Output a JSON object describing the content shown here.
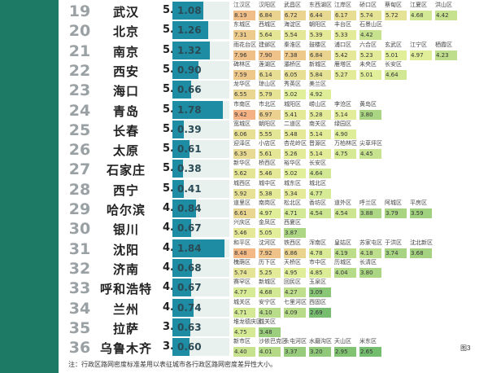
{
  "note": "注：行政区路网密度标准差用以表征城市各行政区路网密度差异性大小。",
  "figure_label": "图3",
  "colors": {
    "band": "#1c7a65",
    "bar": "#1e8da3",
    "low": "#f4b183",
    "mid": "#e2ef9a",
    "high": "#6db96b"
  },
  "chart_data": {
    "type": "table",
    "rows": [
      {
        "rank": "19",
        "city": "武汉",
        "score": "5.77",
        "std": 1.08,
        "std_label": "1.08",
        "districts": [
          [
            "江汉区",
            "8.19"
          ],
          [
            "汉阳区",
            "6.84"
          ],
          [
            "武昌区",
            "6.72"
          ],
          [
            "东西湖区",
            "6.44"
          ],
          [
            "江岸区",
            "6.17"
          ],
          [
            "硚口区",
            "5.74"
          ],
          [
            "蔡甸区",
            "5.72"
          ],
          [
            "江夏区",
            "4.68"
          ],
          [
            "洪山区",
            "4.42"
          ]
        ]
      },
      {
        "rank": "20",
        "city": "北京",
        "score": "5.59",
        "std": 1.26,
        "std_label": "1.26",
        "districts": [
          [
            "东城区",
            "7.31"
          ],
          [
            "西城区",
            "5.64"
          ],
          [
            "海淀区",
            "5.54"
          ],
          [
            "朝阳区",
            "5.39"
          ],
          [
            "丰台区",
            "5.33"
          ],
          [
            "石景山区",
            "4.42"
          ]
        ]
      },
      {
        "rank": "21",
        "city": "南京",
        "score": "5.55",
        "std": 1.32,
        "std_label": "1.32",
        "districts": [
          [
            "雨花台区",
            "7.96"
          ],
          [
            "建邺区",
            "7.90"
          ],
          [
            "秦淮区",
            "7.38"
          ],
          [
            "鼓楼区",
            "6.84"
          ],
          [
            "浦口区",
            "5.42"
          ],
          [
            "六合区",
            "5.23"
          ],
          [
            "玄武区",
            "5.01"
          ],
          [
            "江宁区",
            "4.97"
          ],
          [
            "栖霞区",
            "4.23"
          ]
        ]
      },
      {
        "rank": "22",
        "city": "西安",
        "score": "5.49",
        "std": 0.9,
        "std_label": "0.90",
        "districts": [
          [
            "碑林区",
            "7.59"
          ],
          [
            "莲湖区",
            "6.14"
          ],
          [
            "灞桥区",
            "6.05"
          ],
          [
            "新城区",
            "5.84"
          ],
          [
            "雁塔区",
            "5.27"
          ],
          [
            "未央区",
            "5.01"
          ],
          [
            "长安区",
            "4.64"
          ]
        ]
      },
      {
        "rank": "23",
        "city": "海口",
        "score": "5.46",
        "std": 0.66,
        "std_label": "0.66",
        "districts": [
          [
            "龙华区",
            "6.55"
          ],
          [
            "琼山区",
            "5.79"
          ],
          [
            "秀英区",
            "5.02"
          ],
          [
            "美兰区",
            "4.92"
          ]
        ]
      },
      {
        "rank": "24",
        "city": "青岛",
        "score": "5.35",
        "std": 1.78,
        "std_label": "1.78",
        "districts": [
          [
            "市南区",
            "9.42"
          ],
          [
            "市北区",
            "6.97"
          ],
          [
            "城阳区",
            "5.41"
          ],
          [
            "崂山区",
            "5.28"
          ],
          [
            "李沧区",
            "5.14"
          ],
          [
            "黄岛区",
            "3.80"
          ]
        ]
      },
      {
        "rank": "25",
        "city": "长春",
        "score": "5.33",
        "std": 0.39,
        "std_label": "0.39",
        "districts": [
          [
            "宽城区",
            "6.06"
          ],
          [
            "朝阳区",
            "5.55"
          ],
          [
            "二道区",
            "5.48"
          ],
          [
            "南关区",
            "5.14"
          ],
          [
            "绿园区",
            "4.90"
          ]
        ]
      },
      {
        "rank": "26",
        "city": "太原",
        "score": "5.17",
        "std": 0.61,
        "std_label": "0.61",
        "districts": [
          [
            "迎泽区",
            "6.35"
          ],
          [
            "小店区",
            "5.61"
          ],
          [
            "杏花岭区",
            "5.26"
          ],
          [
            "晋源区",
            "5.14"
          ],
          [
            "万柏林区",
            "4.75"
          ],
          [
            "尖草坪区",
            "4.45"
          ]
        ]
      },
      {
        "rank": "27",
        "city": "石家庄",
        "score": "5.15",
        "std": 0.38,
        "std_label": "0.38",
        "districts": [
          [
            "新华区",
            "5.62"
          ],
          [
            "桥西区",
            "5.46"
          ],
          [
            "裕华区",
            "5.02"
          ],
          [
            "长安区",
            "4.64"
          ]
        ]
      },
      {
        "rank": "28",
        "city": "西宁",
        "score": "5.04",
        "std": 0.41,
        "std_label": "0.41",
        "districts": [
          [
            "城西区",
            "5.92"
          ],
          [
            "城中区",
            "5.38"
          ],
          [
            "城东区",
            "5.34"
          ],
          [
            "城北区",
            "4.77"
          ]
        ]
      },
      {
        "rank": "29",
        "city": "哈尔滨",
        "score": "4.94",
        "std": 0.84,
        "std_label": "0.84",
        "districts": [
          [
            "道里区",
            "6.61"
          ],
          [
            "南岗区",
            "4.97"
          ],
          [
            "松北区",
            "4.71"
          ],
          [
            "香坊区",
            "4.54"
          ],
          [
            "道外区",
            "4.54"
          ],
          [
            "呼兰区",
            "3.88"
          ],
          [
            "阿城区",
            "3.79"
          ],
          [
            "平房区",
            "3.59"
          ]
        ]
      },
      {
        "rank": "30",
        "city": "银川",
        "score": "4.76",
        "std": 0.67,
        "std_label": "0.67",
        "districts": [
          [
            "兴庆区",
            "5.46"
          ],
          [
            "金凤区",
            "5.05"
          ],
          [
            "西夏区",
            "3.87"
          ]
        ]
      },
      {
        "rank": "31",
        "city": "沈阳",
        "score": "4.74",
        "std": 1.84,
        "std_label": "1.84",
        "districts": [
          [
            "和平区",
            "8.48"
          ],
          [
            "沈河区",
            "7.92"
          ],
          [
            "铁西区",
            "6.86"
          ],
          [
            "浑南区",
            "4.78"
          ],
          [
            "皇姑区",
            "4.19"
          ],
          [
            "苏家屯区",
            "4.18"
          ],
          [
            "于洪区",
            "3.74"
          ],
          [
            "沈北新区",
            "3.68"
          ]
        ]
      },
      {
        "rank": "32",
        "city": "济南",
        "score": "4.68",
        "std": 0.68,
        "std_label": "0.68",
        "districts": [
          [
            "槐荫区",
            "5.74"
          ],
          [
            "历下区",
            "5.25"
          ],
          [
            "天桥区",
            "4.95"
          ],
          [
            "市中区",
            "4.85"
          ],
          [
            "历城区",
            "4.04"
          ],
          [
            "长清区",
            "3.80"
          ]
        ]
      },
      {
        "rank": "33",
        "city": "呼和浩特",
        "score": "4.24",
        "std": 0.67,
        "std_label": "0.67",
        "districts": [
          [
            "赛罕区",
            "4.77"
          ],
          [
            "新城区",
            "4.68"
          ],
          [
            "回民区",
            "4.27"
          ],
          [
            "玉泉区",
            "3.09"
          ]
        ]
      },
      {
        "rank": "34",
        "city": "兰州",
        "score": "4.04",
        "std": 0.74,
        "std_label": "0.74",
        "districts": [
          [
            "城关区",
            "4.71"
          ],
          [
            "安宁区",
            "4.10"
          ],
          [
            "七里河区",
            "4.09"
          ],
          [
            "西固区",
            "2.69"
          ]
        ]
      },
      {
        "rank": "35",
        "city": "拉萨",
        "score": "3.78",
        "std": 0.63,
        "std_label": "0.63",
        "districts": [
          [
            "堆龙德庆区",
            "4.75"
          ],
          [
            "城关区",
            "3.48"
          ]
        ]
      },
      {
        "rank": "36",
        "city": "乌鲁木齐",
        "score": "3.41",
        "std": 0.6,
        "std_label": "0.60",
        "districts": [
          [
            "新市区",
            "4.40"
          ],
          [
            "沙依巴克区",
            "4.01"
          ],
          [
            "头屯河区",
            "3.37"
          ],
          [
            "水磨沟区",
            "3.20"
          ],
          [
            "天山区",
            "2.95"
          ],
          [
            "米东区",
            "2.65"
          ]
        ]
      }
    ]
  }
}
